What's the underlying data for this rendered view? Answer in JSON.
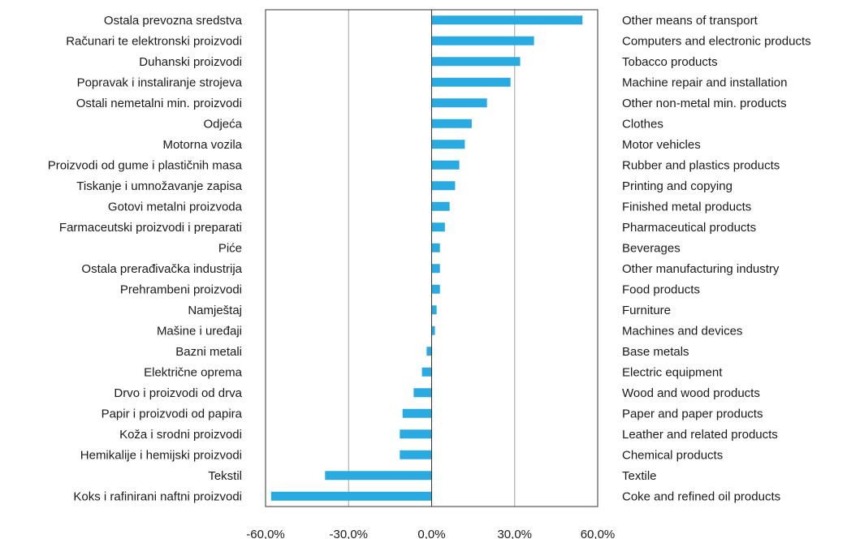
{
  "colors": {
    "bar": "#29abe2",
    "grid": "#9e9e9e",
    "frame": "#333333",
    "zero_line": "#333333",
    "text": "#1a1a1a"
  },
  "chart_data": {
    "type": "bar",
    "orientation": "horizontal",
    "title": "",
    "xlabel": "",
    "ylabel": "",
    "xlim": [
      -60,
      60
    ],
    "grid": "vertical gridlines at -30 and 30",
    "legend": "none",
    "x_ticks": [
      "-60,0%",
      "-30,0%",
      "0,0%",
      "30,0%",
      "60,0%"
    ],
    "categories_bs": [
      "Ostala prevozna sredstva",
      "Računari te elektronski proizvodi",
      "Duhanski proizvodi",
      "Popravak i instaliranje strojeva",
      "Ostali nemetalni min. proizvodi",
      "Odjeća",
      "Motorna vozila",
      "Proizvodi od gume i plastičnih masa",
      "Tiskanje i umnožavanje zapisa",
      "Gotovi metalni proizvoda",
      "Farmaceutski proizvodi i preparati",
      "Piće",
      "Ostala prerađivačka industrija",
      "Prehrambeni proizvodi",
      "Namještaj",
      "Mašine i uređaji",
      "Bazni metali",
      "Električne oprema",
      "Drvo i proizvodi od drva",
      "Papir i proizvodi od papira",
      "Koža i srodni proizvodi",
      "Hemikalije i hemijski proizvodi",
      "Tekstil",
      "Koks i rafinirani naftni proizvodi"
    ],
    "categories_en": [
      "Other means of transport",
      "Computers and electronic products",
      "Tobacco products",
      "Machine repair and installation",
      "Other non-metal min. products",
      "Clothes",
      "Motor vehicles",
      "Rubber and plastics products",
      "Printing and copying",
      "Finished metal products",
      "Pharmaceutical products",
      "Beverages",
      "Other manufacturing industry",
      "Food products",
      "Furniture",
      "Machines and devices",
      "Base metals",
      "Electric equipment",
      "Wood and wood products",
      "Paper and paper products",
      "Leather and related products",
      "Chemical products",
      "Textile",
      "Coke and refined oil products"
    ],
    "values": [
      54.5,
      37.0,
      32.0,
      28.5,
      20.0,
      14.5,
      12.0,
      10.0,
      8.5,
      6.5,
      4.8,
      3.0,
      3.0,
      3.0,
      1.8,
      1.2,
      -1.8,
      -3.5,
      -6.5,
      -10.5,
      -11.5,
      -11.5,
      -38.5,
      -58.0
    ]
  }
}
